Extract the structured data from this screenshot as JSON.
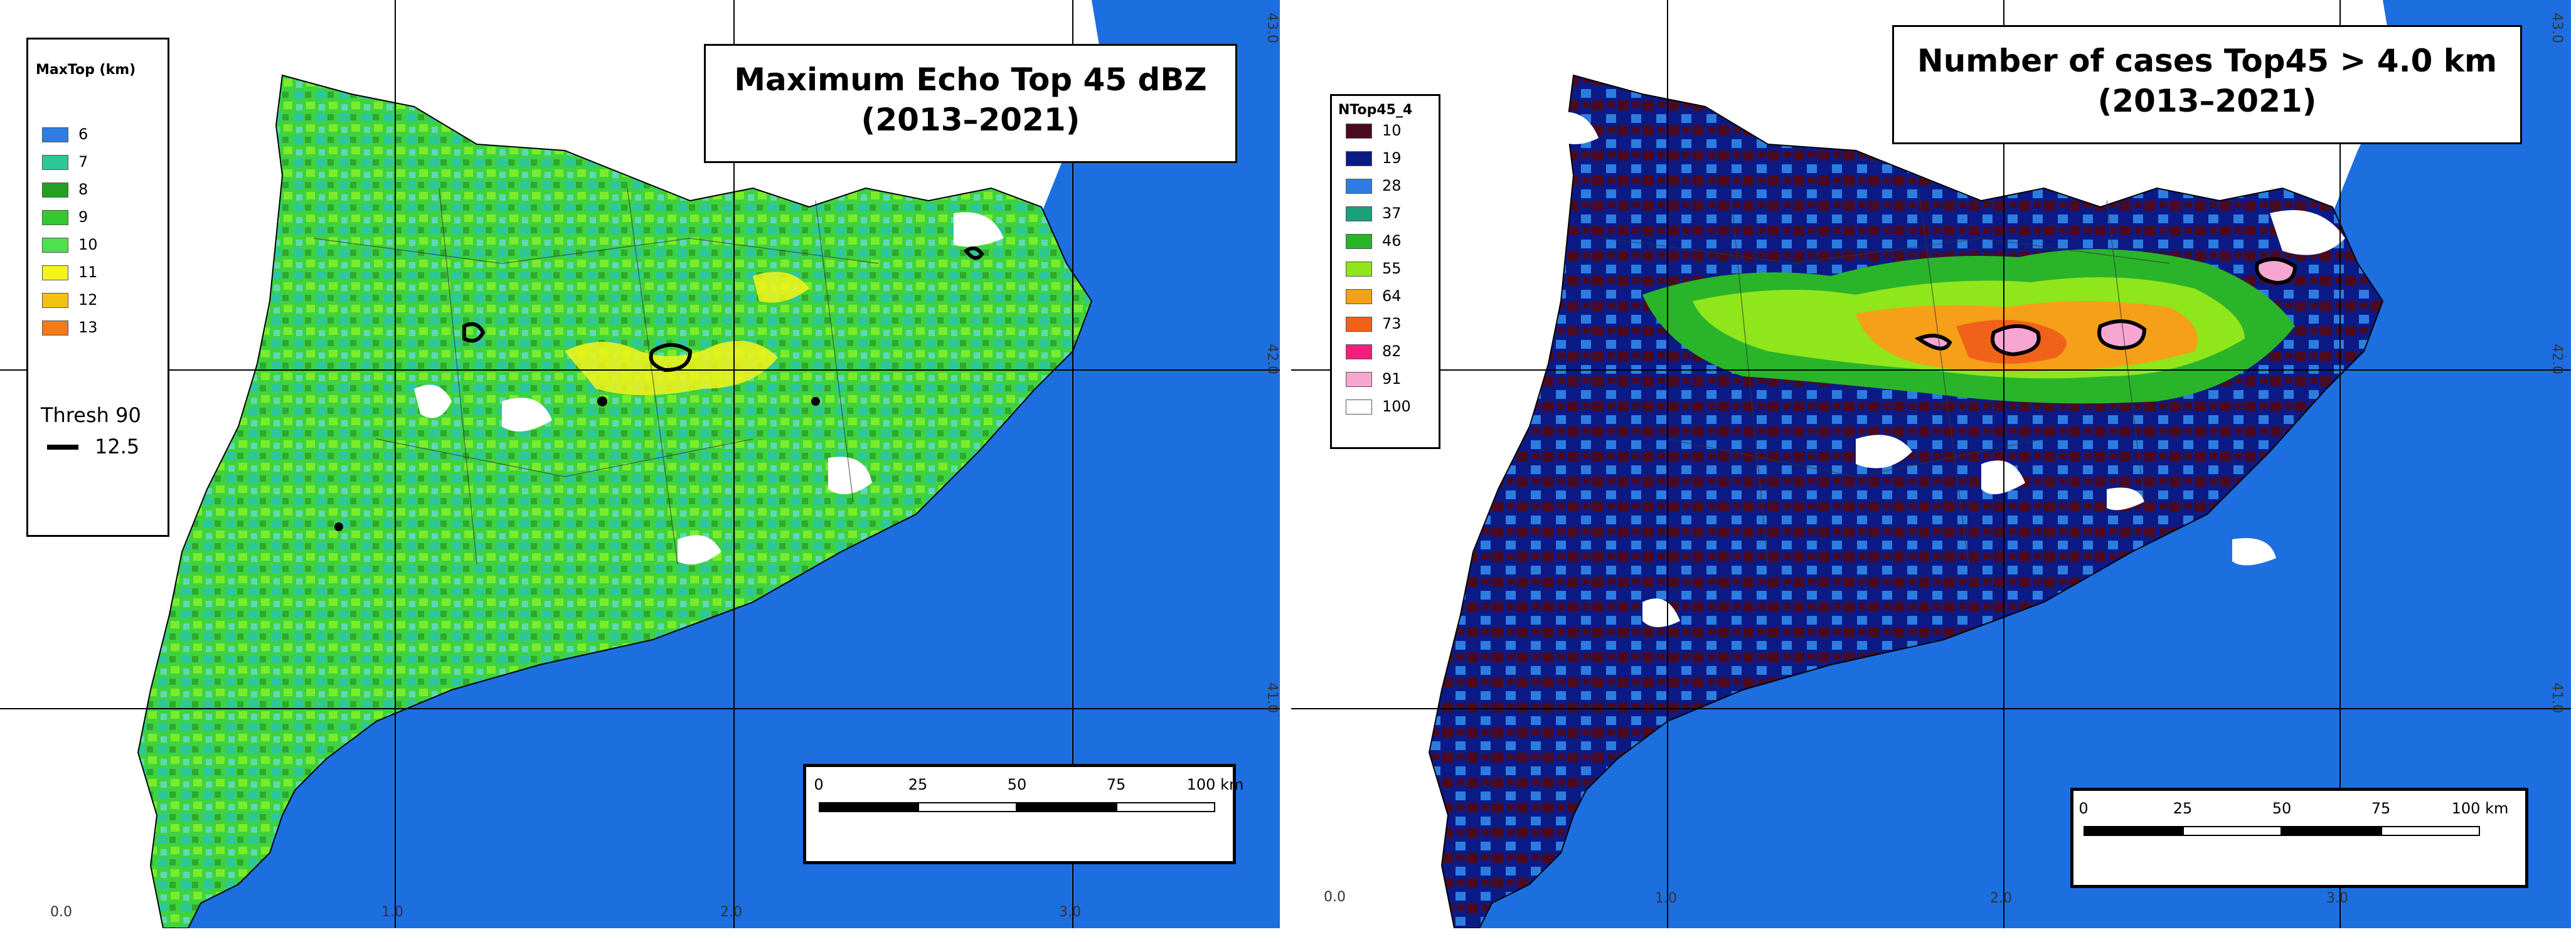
{
  "left": {
    "title_line1": "Maximum Echo Top 45 dBZ",
    "title_line2": "(2013–2021)",
    "legend": {
      "title": "MaxTop (km)",
      "items": [
        {
          "label": "6",
          "color": "#2e7de0"
        },
        {
          "label": "7",
          "color": "#2ec79a"
        },
        {
          "label": "8",
          "color": "#22a022"
        },
        {
          "label": "9",
          "color": "#33c933"
        },
        {
          "label": "10",
          "color": "#4ee04e"
        },
        {
          "label": "11",
          "color": "#f4f41a"
        },
        {
          "label": "12",
          "color": "#f5c20f"
        },
        {
          "label": "13",
          "color": "#f47a1a"
        }
      ],
      "thresh_title": "Thresh 90",
      "thresh_value": "12.5"
    },
    "coords": {
      "lon": [
        "0.0",
        "1.0",
        "2.0",
        "3.0"
      ],
      "lat": [
        "42.0",
        "41.0",
        "43.0"
      ]
    }
  },
  "right": {
    "title_line1": "Number of cases Top45  > 4.0 km",
    "title_line2": "(2013–2021)",
    "legend": {
      "title": "NTop45_4",
      "items": [
        {
          "label": "10",
          "color": "#4a0b22"
        },
        {
          "label": "19",
          "color": "#0c1a86"
        },
        {
          "label": "28",
          "color": "#2d7de0"
        },
        {
          "label": "37",
          "color": "#1aa17c"
        },
        {
          "label": "46",
          "color": "#2ab42a"
        },
        {
          "label": "55",
          "color": "#8fe61a"
        },
        {
          "label": "64",
          "color": "#f5a018"
        },
        {
          "label": "73",
          "color": "#f0621a"
        },
        {
          "label": "82",
          "color": "#f0207a"
        },
        {
          "label": "91",
          "color": "#f6a6d0"
        },
        {
          "label": "100",
          "color": "#ffffff"
        }
      ]
    },
    "coords": {
      "lon": [
        "0.0",
        "1.0",
        "2.0",
        "3.0"
      ],
      "lat": [
        "42.0",
        "41.0",
        "43.0"
      ]
    }
  },
  "scalebar": {
    "ticks": [
      "0",
      "25",
      "50",
      "75",
      "100 km"
    ]
  },
  "colors": {
    "sea": "#1d6fe0",
    "land_outside": "#ffffff",
    "coast": "#000000"
  }
}
